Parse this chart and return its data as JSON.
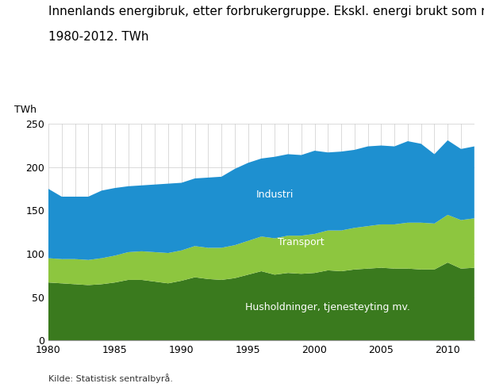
{
  "title_line1": "Innenlands energibruk, etter forbrukergruppe. Ekskl. energi brukt som råstoff.",
  "title_line2": "1980-2012. TWh",
  "ylabel": "TWh",
  "source": "Kilde: Statistisk sentralbyrå.",
  "years": [
    1980,
    1981,
    1982,
    1983,
    1984,
    1985,
    1986,
    1987,
    1988,
    1989,
    1990,
    1991,
    1992,
    1993,
    1994,
    1995,
    1996,
    1997,
    1998,
    1999,
    2000,
    2001,
    2002,
    2003,
    2004,
    2005,
    2006,
    2007,
    2008,
    2009,
    2010,
    2011,
    2012
  ],
  "husholdninger": [
    67,
    66,
    65,
    64,
    65,
    67,
    70,
    70,
    68,
    66,
    69,
    73,
    71,
    70,
    72,
    76,
    80,
    76,
    78,
    77,
    78,
    81,
    80,
    82,
    83,
    84,
    83,
    83,
    82,
    82,
    90,
    83,
    84
  ],
  "transport": [
    28,
    28,
    29,
    29,
    30,
    31,
    32,
    33,
    34,
    35,
    35,
    36,
    36,
    37,
    38,
    39,
    40,
    42,
    43,
    44,
    45,
    46,
    47,
    48,
    49,
    50,
    51,
    53,
    54,
    53,
    55,
    56,
    57
  ],
  "industri": [
    80,
    72,
    72,
    73,
    78,
    78,
    76,
    76,
    78,
    80,
    78,
    78,
    81,
    82,
    88,
    90,
    90,
    94,
    94,
    93,
    96,
    90,
    91,
    90,
    92,
    91,
    90,
    94,
    91,
    80,
    86,
    82,
    83
  ],
  "color_husholdninger": "#3a7a1e",
  "color_transport": "#8dc63f",
  "color_industri": "#1e90d0",
  "ylim": [
    0,
    250
  ],
  "yticks": [
    0,
    50,
    100,
    150,
    200,
    250
  ],
  "xticks": [
    1980,
    1985,
    1990,
    1995,
    2000,
    2005,
    2010
  ],
  "bg_color": "#ffffff",
  "grid_color": "#cccccc",
  "label_industri": "Industri",
  "label_transport": "Transport",
  "label_husholdninger": "Husholdninger, tjenesteyting mv.",
  "title_fontsize": 11,
  "axis_fontsize": 9,
  "label_fontsize": 9
}
